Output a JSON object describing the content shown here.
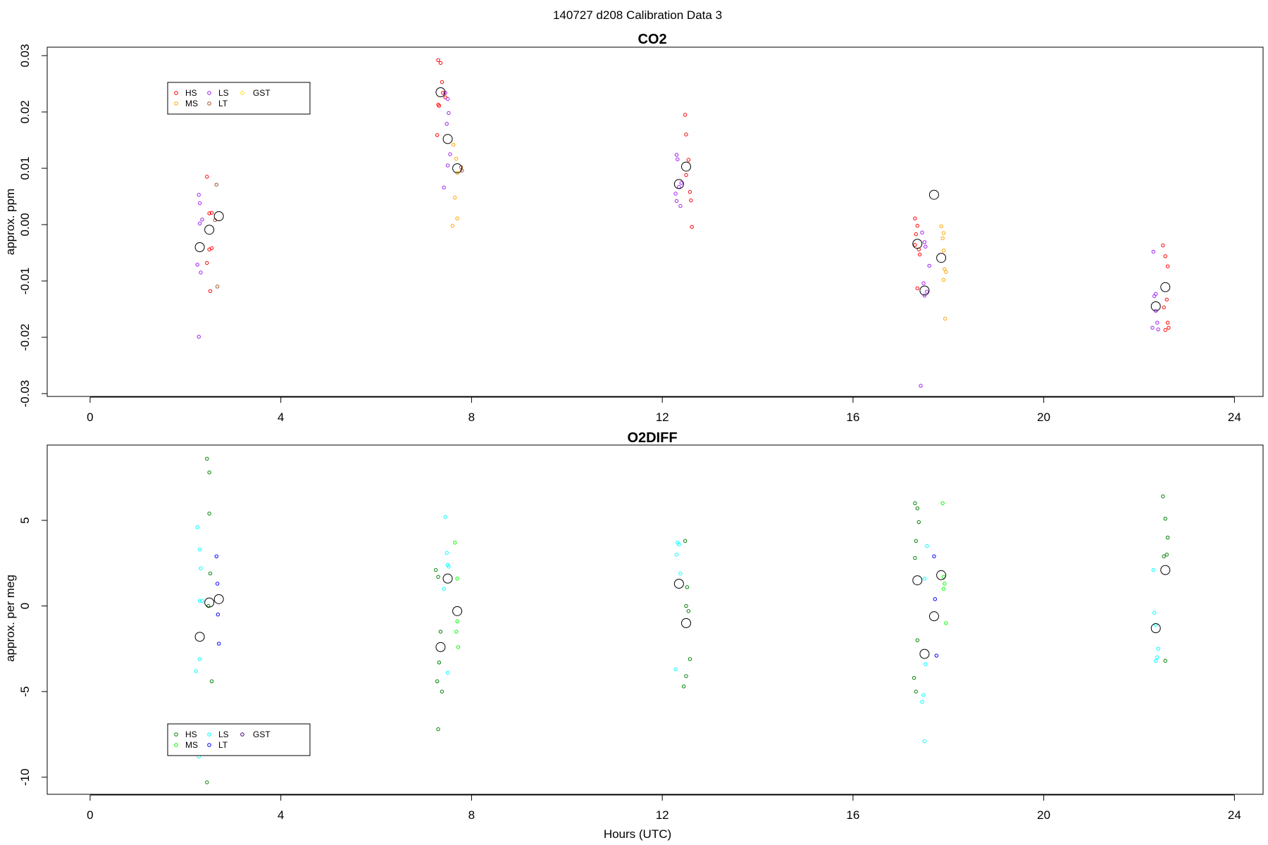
{
  "suptitle": "140727   d208   Calibration Data 3",
  "chart_data": [
    {
      "type": "scatter",
      "title": "CO2",
      "xlabel": "",
      "ylabel": "approx. ppm",
      "xlim": [
        -0.9,
        24.6
      ],
      "ylim": [
        -0.0305,
        0.0315
      ],
      "xticks": [
        "0",
        "4",
        "8",
        "12",
        "16",
        "20",
        "24"
      ],
      "yticks": [
        "-0.03",
        "-0.02",
        "-0.01",
        "0.00",
        "0.01",
        "0.02",
        "0.03"
      ],
      "legend_position": "top-left",
      "series": [
        {
          "name": "HS",
          "color": "#ff0000",
          "x": [
            2.45,
            2.55,
            2.5,
            2.5,
            2.45,
            2.55,
            2.52,
            7.3,
            7.35,
            7.38,
            7.3,
            7.32,
            7.28,
            7.4,
            7.45,
            12.48,
            12.5,
            12.55,
            12.5,
            12.58,
            12.6,
            12.62,
            17.3,
            17.35,
            17.32,
            17.38,
            17.3,
            17.4,
            17.35,
            22.5,
            22.55,
            22.6,
            22.58,
            22.52,
            22.6,
            22.62,
            22.55
          ],
          "y": [
            0.0085,
            0.0021,
            0.002,
            -0.0044,
            -0.0068,
            -0.0042,
            -0.0118,
            0.0292,
            0.0287,
            0.0253,
            0.0213,
            0.0211,
            0.0159,
            0.0234,
            0.0226,
            0.0195,
            0.016,
            0.0115,
            0.0088,
            0.0058,
            0.0043,
            -0.0004,
            0.0011,
            -0.0002,
            -0.0017,
            -0.0044,
            -0.0036,
            -0.0053,
            -0.0113,
            -0.0037,
            -0.0056,
            -0.0074,
            -0.0133,
            -0.0147,
            -0.0174,
            -0.0183,
            -0.0187
          ]
        },
        {
          "name": "MS",
          "color": "#ffa500",
          "x": [
            7.62,
            7.68,
            7.7,
            7.65,
            7.6,
            7.7,
            17.85,
            17.9,
            17.88,
            17.92,
            17.95,
            17.9,
            17.93,
            17.9
          ],
          "y": [
            0.0142,
            0.0117,
            0.0092,
            0.0048,
            -0.0002,
            0.0011,
            -0.0003,
            -0.0015,
            -0.0024,
            -0.0079,
            -0.0084,
            -0.0098,
            -0.0167,
            -0.0046
          ],
          "note": ""
        },
        {
          "name": "LS",
          "color": "#a020f0",
          "x": [
            2.28,
            2.3,
            2.35,
            2.3,
            2.25,
            2.32,
            2.28,
            7.45,
            7.5,
            7.52,
            7.48,
            7.55,
            7.5,
            7.42,
            12.3,
            12.32,
            12.35,
            12.28,
            12.3,
            12.38,
            12.4,
            17.45,
            17.5,
            17.52,
            17.48,
            17.55,
            17.5,
            17.42,
            17.6,
            22.3,
            22.32,
            22.35,
            22.28,
            22.4,
            22.38,
            22.35
          ],
          "y": [
            0.0053,
            0.0038,
            0.0009,
            0.0002,
            -0.0071,
            -0.0085,
            -0.0199,
            0.0234,
            0.0223,
            0.0198,
            0.0179,
            0.0125,
            0.0105,
            0.0066,
            0.0124,
            0.0116,
            0.0067,
            0.0055,
            0.0042,
            0.0033,
            0.0074,
            -0.0014,
            -0.0031,
            -0.0039,
            -0.0104,
            -0.0119,
            -0.0126,
            -0.0286,
            -0.0073,
            -0.0048,
            -0.0127,
            -0.0153,
            -0.0183,
            -0.0186,
            -0.0174,
            -0.0123
          ]
        },
        {
          "name": "LT",
          "color": "#a0522d",
          "x": [
            2.65,
            2.67,
            2.62,
            7.78,
            7.8
          ],
          "y": [
            0.0071,
            -0.011,
            0.0008,
            0.0102,
            0.0096
          ]
        },
        {
          "name": "GST",
          "color": "#ffe000",
          "x": [],
          "y": []
        },
        {
          "name": "",
          "color": "#000000",
          "marker": "large-open-circle",
          "x": [
            2.3,
            2.5,
            2.7,
            7.35,
            7.5,
            7.7,
            12.35,
            12.5,
            17.35,
            17.5,
            17.7,
            17.85,
            22.35,
            22.55
          ],
          "y": [
            -0.004,
            -0.0009,
            0.0015,
            0.0235,
            0.0152,
            0.01,
            0.0072,
            0.0103,
            -0.0034,
            -0.0117,
            0.0053,
            -0.0059,
            -0.0145,
            -0.0111
          ]
        }
      ]
    },
    {
      "type": "scatter",
      "title": "O2DIFF",
      "xlabel": "Hours (UTC)",
      "ylabel": "approx. per meg",
      "xlim": [
        -0.9,
        24.6
      ],
      "ylim": [
        -11.0,
        9.4
      ],
      "xticks": [
        "0",
        "4",
        "8",
        "12",
        "16",
        "20",
        "24"
      ],
      "yticks": [
        "-10",
        "-5",
        "0",
        "5"
      ],
      "legend_position": "bottom-left",
      "series": [
        {
          "name": "HS",
          "color": "#008000",
          "x": [
            2.45,
            2.5,
            2.5,
            2.52,
            2.48,
            2.55,
            2.45,
            7.25,
            7.3,
            7.35,
            7.32,
            7.28,
            7.38,
            7.3,
            12.48,
            12.52,
            12.5,
            12.55,
            12.58,
            12.5,
            12.45,
            17.3,
            17.35,
            17.38,
            17.32,
            17.3,
            17.35,
            17.28,
            17.32,
            22.5,
            22.55,
            22.6,
            22.58,
            22.52,
            22.55
          ],
          "y": [
            8.6,
            7.8,
            5.4,
            1.9,
            0.0,
            -4.4,
            -10.3,
            2.1,
            1.7,
            -1.5,
            -3.3,
            -4.4,
            -5.0,
            -7.2,
            3.8,
            1.1,
            0.0,
            -0.3,
            -3.1,
            -4.1,
            -4.7,
            6.0,
            5.7,
            4.9,
            3.8,
            2.8,
            -2.0,
            -4.2,
            -5.0,
            6.4,
            5.1,
            4.0,
            3.0,
            2.9,
            -3.2
          ]
        },
        {
          "name": "MS",
          "color": "#00ff00",
          "x": [
            7.65,
            7.7,
            7.68,
            7.72,
            7.7,
            17.88,
            17.92,
            17.9,
            17.95,
            17.9
          ],
          "y": [
            3.7,
            -0.9,
            -1.5,
            -2.4,
            1.6,
            6.0,
            1.3,
            1.0,
            -1.0,
            1.7
          ]
        },
        {
          "name": "LS",
          "color": "#00ffff",
          "x": [
            2.25,
            2.3,
            2.32,
            2.35,
            2.3,
            2.22,
            2.28,
            2.3,
            7.45,
            7.48,
            7.5,
            7.52,
            7.42,
            7.5,
            12.32,
            12.35,
            12.3,
            12.38,
            12.28,
            17.55,
            17.5,
            17.52,
            17.48,
            17.45,
            17.5,
            22.3,
            22.32,
            22.35,
            22.4,
            22.38,
            22.35
          ],
          "y": [
            4.6,
            3.3,
            2.2,
            0.3,
            -3.1,
            -3.8,
            -8.8,
            0.3,
            5.2,
            3.1,
            2.4,
            2.3,
            1.0,
            -3.9,
            3.7,
            3.6,
            3.0,
            1.9,
            -3.7,
            3.5,
            1.6,
            -3.4,
            -5.2,
            -5.6,
            -7.9,
            2.1,
            -0.4,
            -1.1,
            -2.5,
            -3.0,
            -3.2
          ]
        },
        {
          "name": "LT",
          "color": "#0000ff",
          "x": [
            2.65,
            2.67,
            2.68,
            2.7,
            17.7,
            17.72,
            17.75
          ],
          "y": [
            2.9,
            1.3,
            -0.5,
            -2.2,
            2.9,
            0.4,
            -2.9
          ]
        },
        {
          "name": "GST",
          "color": "#4b0082",
          "x": [],
          "y": []
        },
        {
          "name": "",
          "color": "#000000",
          "marker": "large-open-circle",
          "x": [
            2.3,
            2.5,
            2.7,
            7.35,
            7.5,
            7.7,
            12.35,
            12.5,
            17.35,
            17.5,
            17.7,
            17.85,
            22.35,
            22.55
          ],
          "y": [
            -1.8,
            0.2,
            0.4,
            -2.4,
            1.6,
            -0.3,
            1.3,
            -1.0,
            1.5,
            -2.8,
            -0.6,
            1.8,
            -1.3,
            2.1
          ]
        }
      ]
    }
  ]
}
